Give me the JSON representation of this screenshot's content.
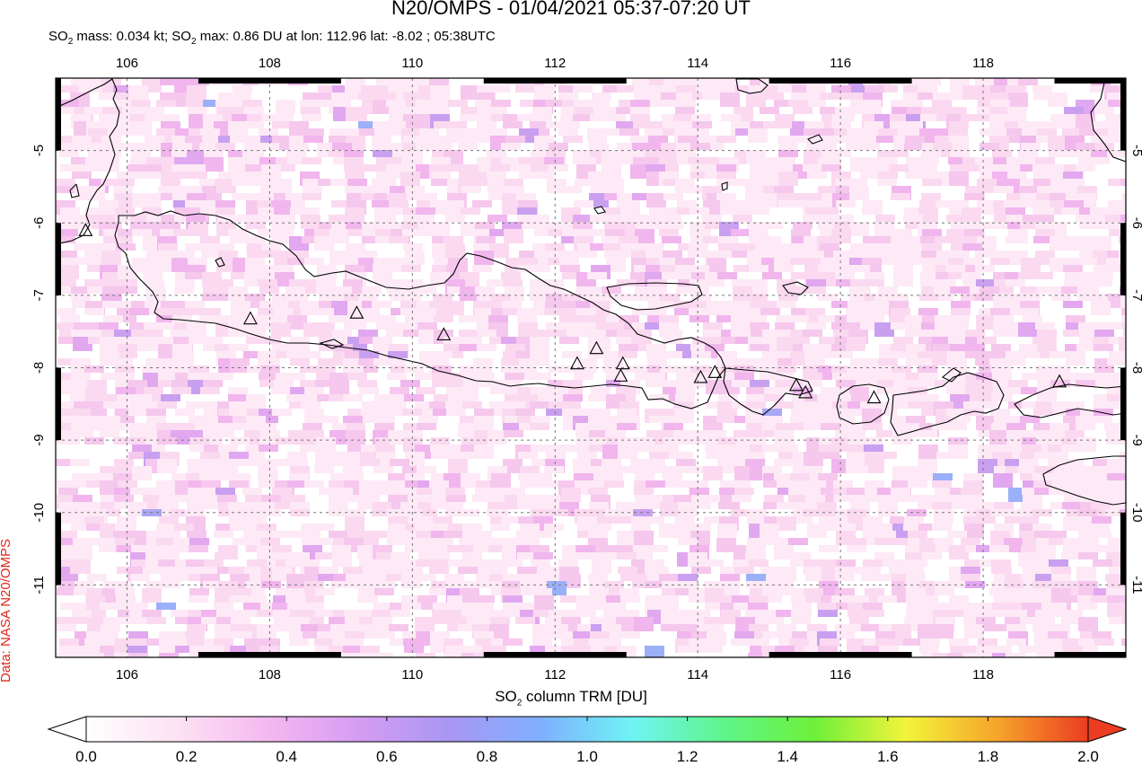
{
  "title": "N20/OMPS - 01/04/2021 05:37-07:20 UT",
  "subtitle": {
    "mass_prefix": "SO",
    "mass_sub": "2",
    "mass_text": " mass: 0.034 kt; SO",
    "max_sub": "2",
    "max_text": " max: 0.86 DU at lon: 112.96 lat: -8.02 ; 05:38UTC"
  },
  "side_label": "Data: NASA N20/OMPS",
  "map": {
    "lon_range": [
      105.0,
      120.0
    ],
    "lat_range": [
      -12.0,
      -4.0
    ],
    "lon_ticks": [
      "106",
      "108",
      "110",
      "112",
      "114",
      "116",
      "118"
    ],
    "lat_ticks": [
      "-5",
      "-6",
      "-7",
      "-8",
      "-9",
      "-10",
      "-11"
    ],
    "grid": true,
    "land_color": "#ffffff",
    "coastline_color": "#000000",
    "volcanoes": [
      {
        "lon": 105.42,
        "lat": -6.1
      },
      {
        "lon": 107.73,
        "lat": -7.32
      },
      {
        "lon": 109.22,
        "lat": -7.24
      },
      {
        "lon": 110.44,
        "lat": -7.54
      },
      {
        "lon": 112.31,
        "lat": -7.94
      },
      {
        "lon": 112.58,
        "lat": -7.73
      },
      {
        "lon": 112.92,
        "lat": -8.11
      },
      {
        "lon": 112.95,
        "lat": -7.94
      },
      {
        "lon": 114.04,
        "lat": -8.13
      },
      {
        "lon": 114.24,
        "lat": -8.06
      },
      {
        "lon": 115.38,
        "lat": -8.24
      },
      {
        "lon": 115.51,
        "lat": -8.34
      },
      {
        "lon": 116.47,
        "lat": -8.41
      },
      {
        "lon": 119.07,
        "lat": -8.19
      }
    ]
  },
  "colorbar": {
    "label_prefix": "SO",
    "label_sub": "2",
    "label_suffix": " column TRM [DU]",
    "ticks": [
      "0.0",
      "0.2",
      "0.4",
      "0.6",
      "0.8",
      "1.0",
      "1.2",
      "1.4",
      "1.6",
      "1.8",
      "2.0"
    ],
    "range": [
      0.0,
      2.0
    ],
    "colors": [
      "#ffffff",
      "#fde2f3",
      "#f4b8f0",
      "#d59cf2",
      "#a897f2",
      "#7fb0ff",
      "#6ff4f4",
      "#5ef58a",
      "#6ef03a",
      "#f2f43a",
      "#f6a52a",
      "#ec3c22"
    ]
  }
}
